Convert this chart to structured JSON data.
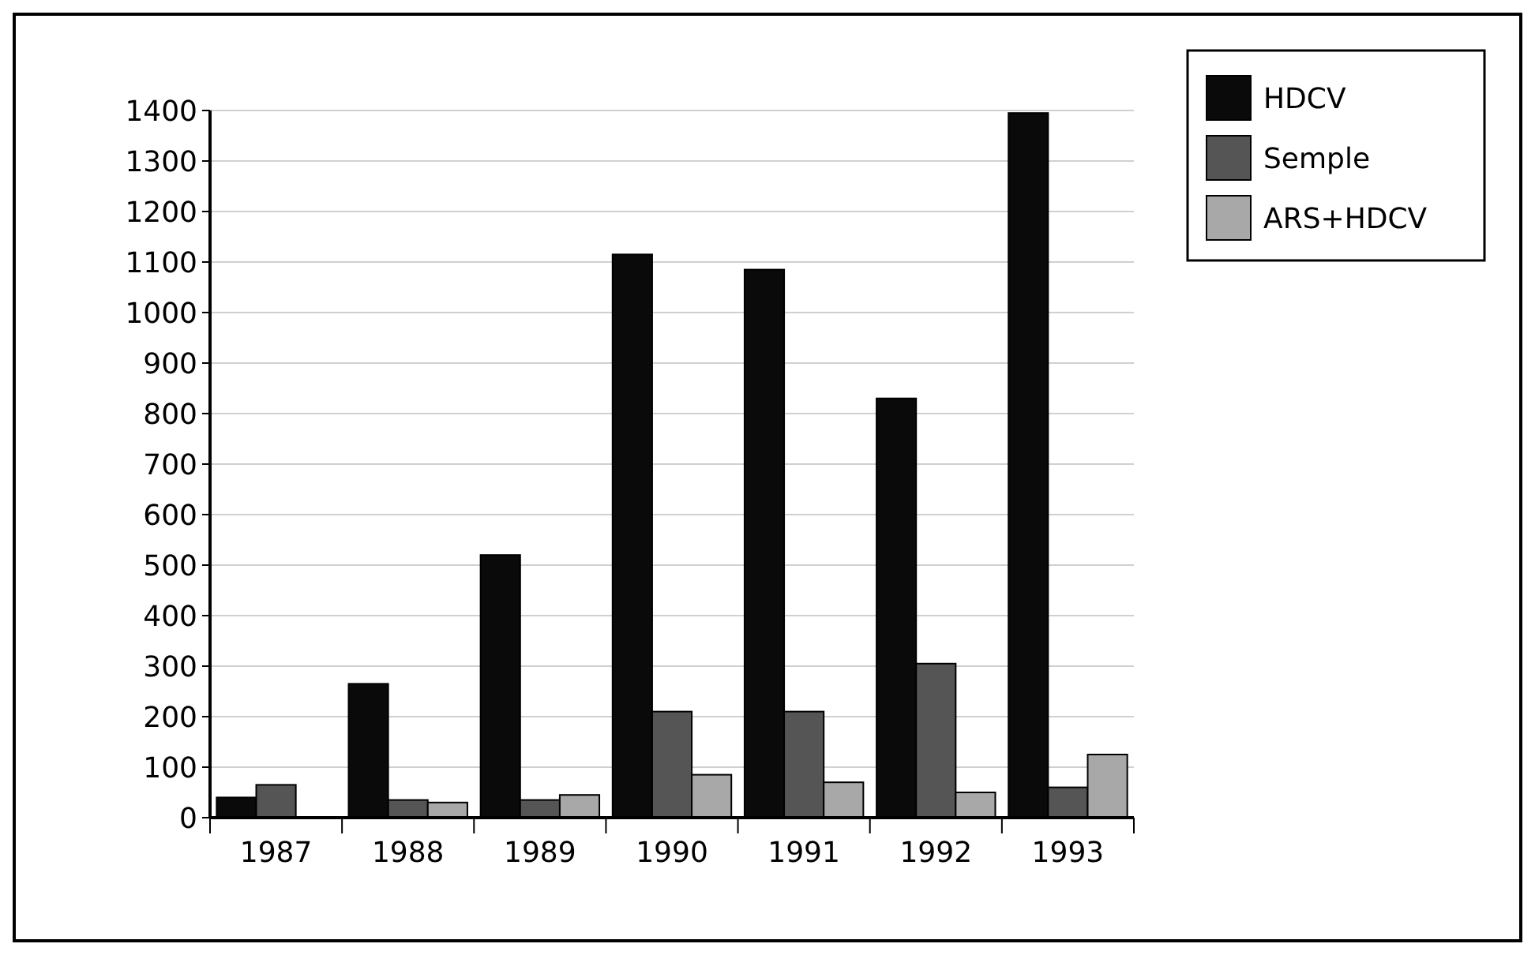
{
  "chart_data": {
    "type": "bar",
    "categories": [
      "1987",
      "1988",
      "1989",
      "1990",
      "1991",
      "1992",
      "1993"
    ],
    "series": [
      {
        "name": "HDCV",
        "color": "#0a0a0a",
        "values": [
          40,
          265,
          520,
          1115,
          1085,
          830,
          1395
        ]
      },
      {
        "name": "Semple",
        "color": "#555555",
        "values": [
          65,
          35,
          35,
          210,
          210,
          305,
          60
        ]
      },
      {
        "name": "ARS+HDCV",
        "color": "#a8a8a8",
        "values": [
          0,
          30,
          45,
          85,
          70,
          50,
          125
        ]
      }
    ],
    "ylim": [
      0,
      1400
    ],
    "yticks": [
      0,
      100,
      200,
      300,
      400,
      500,
      600,
      700,
      800,
      900,
      1000,
      1100,
      1200,
      1300,
      1400
    ],
    "grid": "y",
    "legend": "top right"
  }
}
